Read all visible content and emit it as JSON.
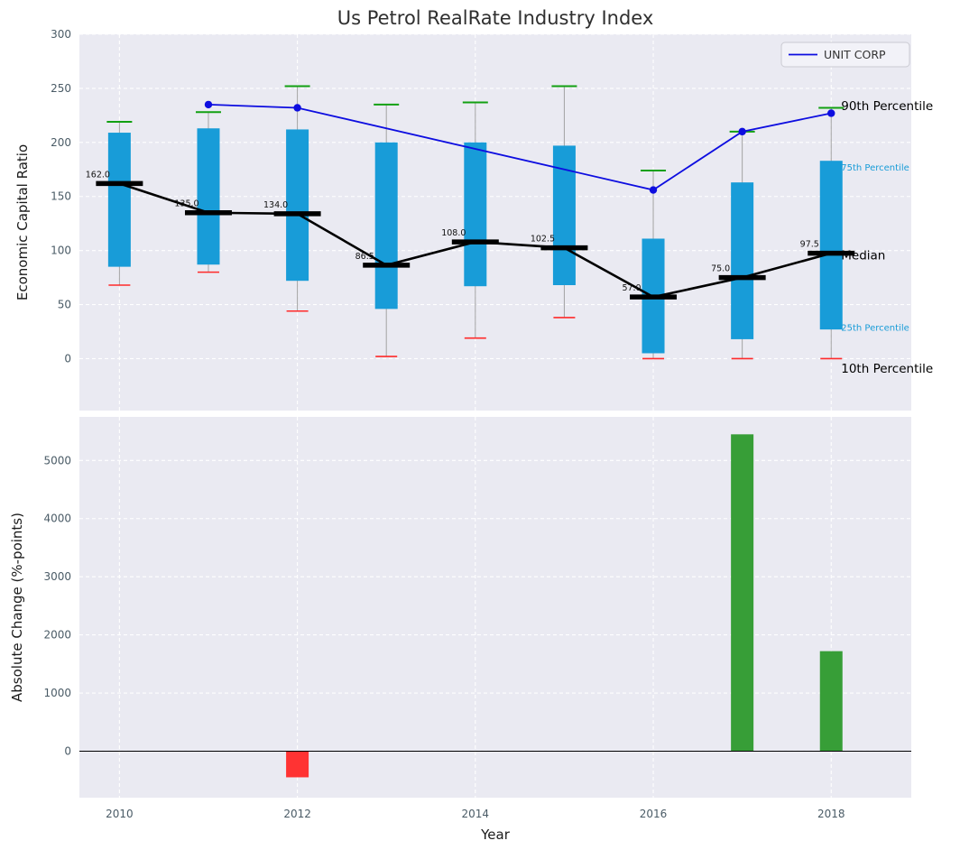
{
  "chart_data": {
    "type": [
      "boxplot",
      "line",
      "bar"
    ],
    "title": "Us Petrol RealRate Industry Index",
    "xlabel": "Year",
    "xlim": [
      2009.55,
      2018.9
    ],
    "x_ticks": [
      2010,
      2012,
      2014,
      2016,
      2018
    ],
    "style": {
      "plot_bg": "#eaeaf2",
      "grid_color": "#ffffff",
      "tick_color": "#4a5b66",
      "box_color": "#189cd8",
      "whisker_color": "#a3a3a3",
      "p90_color": "#12a012",
      "p10_color": "#ff2a2a",
      "median_color": "#000000",
      "line_color": "#0d0de0",
      "bar_up_color": "#379e37",
      "bar_down_color": "#ff3333"
    },
    "top": {
      "type": "boxplot+line",
      "ylabel": "Economic Capital Ratio",
      "ylim": [
        -48,
        300
      ],
      "y_ticks": [
        0,
        50,
        100,
        150,
        200,
        250,
        300
      ],
      "years": [
        2010,
        2011,
        2012,
        2013,
        2014,
        2015,
        2016,
        2017,
        2018
      ],
      "p90": [
        219,
        228,
        252,
        235,
        237,
        252,
        174,
        210,
        232
      ],
      "p75": [
        209,
        213,
        212,
        200,
        200,
        197,
        111,
        163,
        183
      ],
      "median": [
        162,
        135,
        134,
        86.5,
        108,
        102.5,
        57,
        75,
        97.5
      ],
      "p25": [
        85,
        87,
        72,
        46,
        67,
        68,
        5,
        18,
        27
      ],
      "p10": [
        68,
        80,
        44,
        2,
        19,
        38,
        0,
        0,
        0
      ],
      "median_labels": [
        "162.0",
        "135.0",
        "134.0",
        "86.5",
        "108.0",
        "102.5",
        "57.0",
        "75.0",
        "97.5"
      ],
      "series": {
        "name": "UNIT CORP",
        "x": [
          2011,
          2012,
          2016,
          2017,
          2018
        ],
        "y": [
          235,
          232,
          156,
          210,
          227
        ]
      },
      "annotations": [
        {
          "label": "90th Percentile",
          "value": 234,
          "color": "#000000",
          "size": 13.5
        },
        {
          "label": "75th Percentile",
          "value": 177,
          "color": "#189cd8",
          "size": 10
        },
        {
          "label": "Median",
          "value": 96,
          "color": "#000000",
          "size": 13.5
        },
        {
          "label": "25th Percentile",
          "value": 29,
          "color": "#189cd8",
          "size": 10
        },
        {
          "label": "10th Percentile",
          "value": -9,
          "color": "#000000",
          "size": 13.5
        }
      ]
    },
    "bottom": {
      "type": "bar",
      "ylabel": "Absolute Change (%-points)",
      "ylim": [
        -800,
        5750
      ],
      "y_ticks": [
        0,
        1000,
        2000,
        3000,
        4000,
        5000
      ],
      "bars": [
        {
          "year": 2012,
          "value": -450
        },
        {
          "year": 2017,
          "value": 5450
        },
        {
          "year": 2018,
          "value": 1720
        }
      ]
    },
    "legend": {
      "label": "UNIT CORP",
      "position": "upper right"
    }
  }
}
